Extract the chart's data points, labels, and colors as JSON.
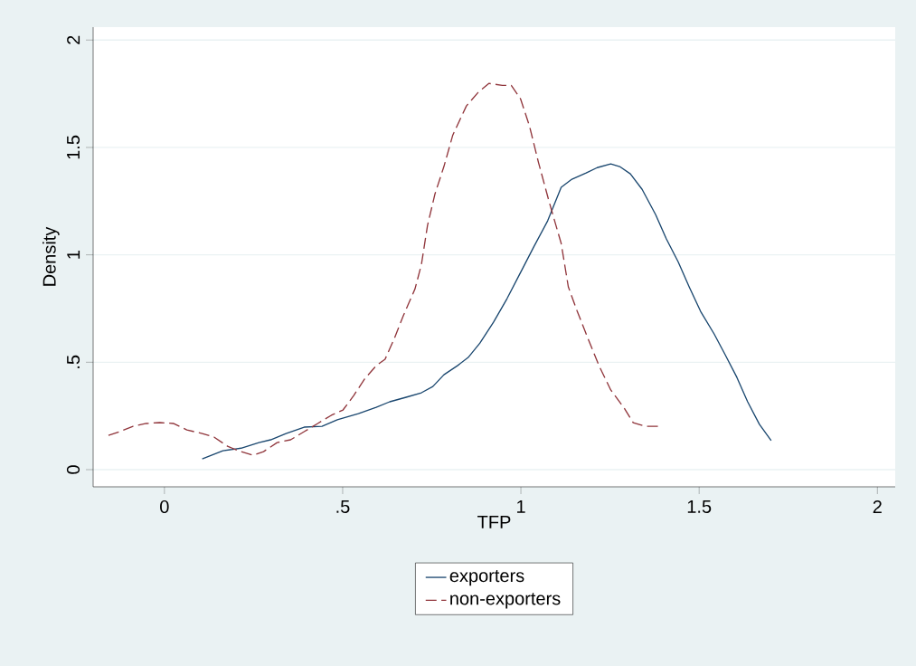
{
  "chart_data": {
    "type": "line",
    "xlabel": "TFP",
    "ylabel": "Density",
    "xlim": [
      -0.2,
      2.05
    ],
    "ylim": [
      -0.08,
      2.06
    ],
    "xticks": [
      0,
      {
        "value": 0.5,
        "label": ".5"
      },
      1,
      1.5,
      2
    ],
    "yticks": [
      0,
      {
        "value": 0.5,
        "label": ".5"
      },
      1,
      1.5,
      2
    ],
    "grid": "y",
    "legend": "bottom",
    "series": [
      {
        "name": "exporters",
        "color": "#1a476f",
        "line_style": "solid",
        "x": [
          0.106,
          0.164,
          0.215,
          0.265,
          0.298,
          0.341,
          0.392,
          0.442,
          0.485,
          0.544,
          0.594,
          0.632,
          0.678,
          0.721,
          0.753,
          0.784,
          0.822,
          0.852,
          0.885,
          0.923,
          0.961,
          0.999,
          1.037,
          1.075,
          1.113,
          1.143,
          1.183,
          1.214,
          1.252,
          1.277,
          1.307,
          1.34,
          1.378,
          1.408,
          1.441,
          1.472,
          1.504,
          1.542,
          1.573,
          1.606,
          1.636,
          1.669,
          1.702
        ],
        "values": [
          0.05,
          0.088,
          0.1,
          0.126,
          0.139,
          0.168,
          0.198,
          0.202,
          0.232,
          0.261,
          0.29,
          0.316,
          0.337,
          0.358,
          0.387,
          0.442,
          0.484,
          0.522,
          0.589,
          0.686,
          0.796,
          0.918,
          1.04,
          1.158,
          1.314,
          1.352,
          1.381,
          1.406,
          1.423,
          1.411,
          1.377,
          1.305,
          1.187,
          1.074,
          0.968,
          0.851,
          0.737,
          0.632,
          0.535,
          0.429,
          0.316,
          0.211,
          0.135
        ]
      },
      {
        "name": "non-exporters",
        "color": "#90353b",
        "line_style": "dashed",
        "x": [
          -0.157,
          -0.126,
          -0.088,
          -0.051,
          -0.013,
          0.025,
          0.063,
          0.106,
          0.139,
          0.177,
          0.207,
          0.248,
          0.278,
          0.316,
          0.354,
          0.392,
          0.43,
          0.468,
          0.501,
          0.531,
          0.561,
          0.594,
          0.619,
          0.645,
          0.67,
          0.703,
          0.721,
          0.738,
          0.759,
          0.784,
          0.809,
          0.847,
          0.88,
          0.91,
          0.948,
          0.973,
          0.999,
          1.024,
          1.049,
          1.08,
          1.113,
          1.133,
          1.158,
          1.188,
          1.219,
          1.252,
          1.29,
          1.315,
          1.348,
          1.386
        ],
        "values": [
          0.16,
          0.177,
          0.202,
          0.215,
          0.219,
          0.215,
          0.185,
          0.168,
          0.152,
          0.109,
          0.088,
          0.067,
          0.084,
          0.126,
          0.139,
          0.177,
          0.215,
          0.253,
          0.278,
          0.345,
          0.421,
          0.484,
          0.514,
          0.611,
          0.716,
          0.842,
          0.956,
          1.137,
          1.284,
          1.411,
          1.558,
          1.693,
          1.756,
          1.798,
          1.789,
          1.789,
          1.726,
          1.6,
          1.432,
          1.242,
          1.053,
          0.851,
          0.737,
          0.611,
          0.484,
          0.371,
          0.286,
          0.219,
          0.202,
          0.202
        ]
      }
    ]
  }
}
